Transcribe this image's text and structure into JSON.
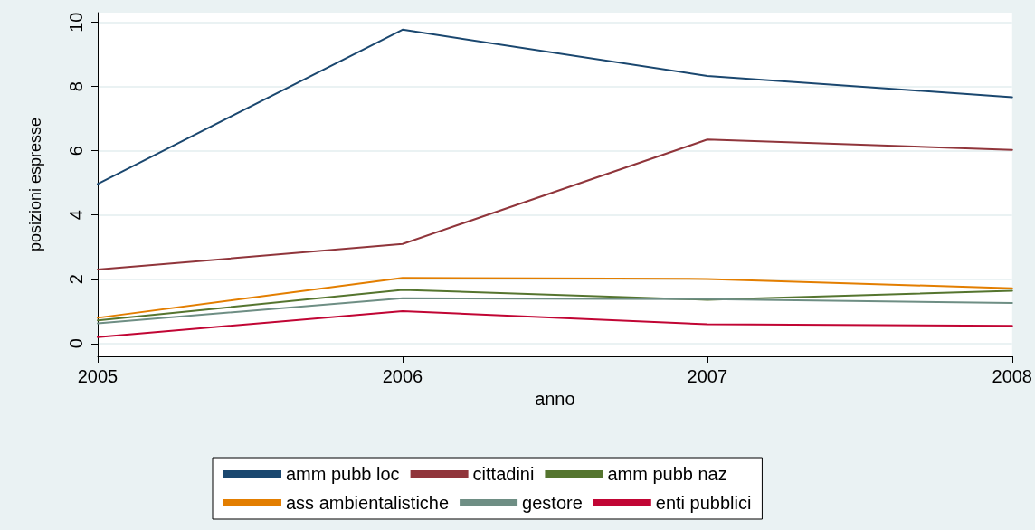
{
  "chart_data": {
    "type": "line",
    "xlabel": "anno",
    "ylabel": "posizioni espresse",
    "x": [
      2005,
      2006,
      2007,
      2008
    ],
    "xlim": [
      2005,
      2008
    ],
    "xticks": [
      2005,
      2006,
      2007,
      2008
    ],
    "ylim": [
      -0.4,
      10.3
    ],
    "yticks": [
      0,
      2,
      4,
      6,
      8,
      10
    ],
    "grid": "y",
    "legend": "bottom",
    "series": [
      {
        "name": "amm pubb loc",
        "color": "#1a476f",
        "values": [
          4.97,
          9.77,
          8.33,
          7.67
        ]
      },
      {
        "name": "cittadini",
        "color": "#90353b",
        "values": [
          2.3,
          3.1,
          6.35,
          6.03
        ]
      },
      {
        "name": "amm pubb naz",
        "color": "#55752f",
        "values": [
          0.72,
          1.67,
          1.36,
          1.64
        ]
      },
      {
        "name": "ass ambientalistiche",
        "color": "#e37e00",
        "values": [
          0.8,
          2.04,
          2.01,
          1.72
        ]
      },
      {
        "name": "gestore",
        "color": "#6e8e84",
        "values": [
          0.63,
          1.41,
          1.38,
          1.26
        ]
      },
      {
        "name": "enti pubblici",
        "color": "#c10534",
        "values": [
          0.2,
          1.01,
          0.6,
          0.55
        ]
      }
    ]
  }
}
